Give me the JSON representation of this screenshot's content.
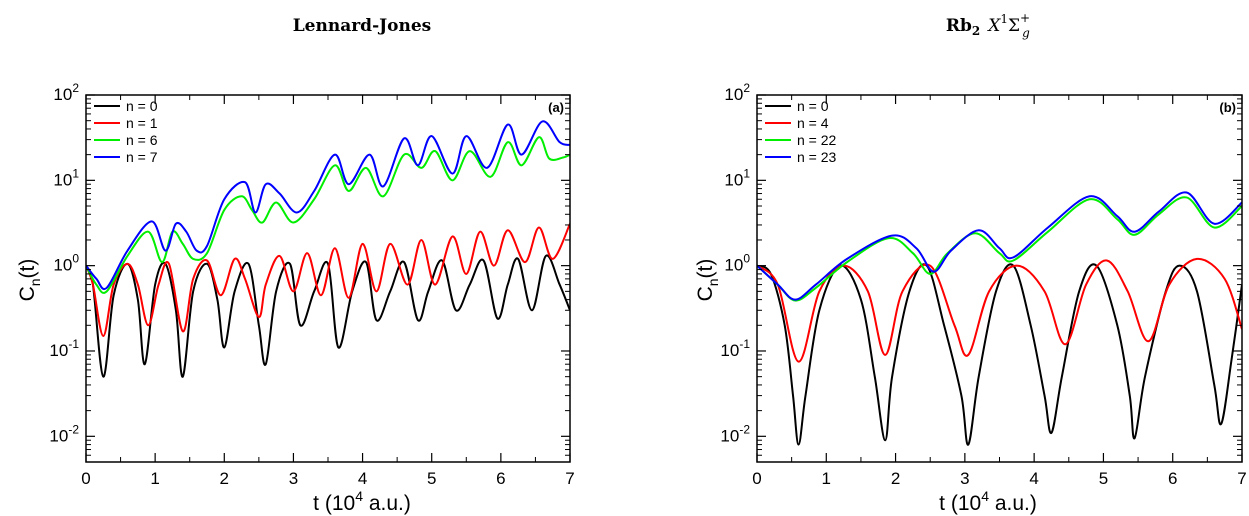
{
  "chart_data": [
    {
      "type": "line",
      "title": "Lennard-Jones",
      "panel_tag": "(a)",
      "xlabel": "t (10",
      "xlabel_sup": "4",
      "xlabel_tail": " a.u.)",
      "ylabel": "C",
      "ylabel_sub": "n",
      "ylabel_tail": "(t)",
      "xlim": [
        0,
        7
      ],
      "ylim": [
        0.005,
        100
      ],
      "y_scale": "log",
      "x_ticks": [
        "0",
        "1",
        "2",
        "3",
        "4",
        "5",
        "6",
        "7"
      ],
      "y_ticks": [
        {
          "base": "10",
          "exp": "-2"
        },
        {
          "base": "10",
          "exp": "-1"
        },
        {
          "base": "10",
          "exp": "0"
        },
        {
          "base": "10",
          "exp": "1"
        },
        {
          "base": "10",
          "exp": "2"
        }
      ],
      "legend_position": "top-left",
      "series": [
        {
          "name": "n = 0",
          "color": "#000000",
          "x": [
            0,
            0.1,
            0.25,
            0.4,
            0.6,
            0.75,
            0.85,
            1.0,
            1.15,
            1.3,
            1.4,
            1.55,
            1.75,
            1.9,
            2.0,
            2.15,
            2.35,
            2.5,
            2.6,
            2.75,
            2.95,
            3.1,
            3.3,
            3.5,
            3.65,
            3.85,
            4.05,
            4.2,
            4.4,
            4.6,
            4.8,
            4.95,
            5.15,
            5.35,
            5.55,
            5.75,
            5.95,
            6.1,
            6.25,
            6.45,
            6.65,
            6.85,
            7.0
          ],
          "values": [
            1.0,
            0.6,
            0.05,
            0.45,
            1.05,
            0.4,
            0.07,
            0.6,
            1.05,
            0.3,
            0.05,
            0.5,
            1.05,
            0.4,
            0.11,
            0.5,
            1.05,
            0.2,
            0.07,
            0.5,
            1.05,
            0.2,
            0.5,
            1.05,
            0.11,
            0.5,
            1.1,
            0.23,
            0.5,
            1.1,
            0.23,
            0.5,
            1.15,
            0.3,
            0.6,
            1.15,
            0.24,
            0.6,
            1.2,
            0.3,
            1.3,
            0.6,
            0.3
          ]
        },
        {
          "name": "n = 1",
          "color": "#ff0000",
          "x": [
            0,
            0.1,
            0.25,
            0.4,
            0.6,
            0.75,
            0.9,
            1.05,
            1.2,
            1.4,
            1.55,
            1.75,
            1.95,
            2.15,
            2.3,
            2.5,
            2.6,
            2.8,
            3.0,
            3.2,
            3.4,
            3.6,
            3.8,
            4.0,
            4.2,
            4.4,
            4.65,
            4.85,
            5.05,
            5.3,
            5.5,
            5.7,
            5.9,
            6.1,
            6.35,
            6.55,
            6.75,
            7.0
          ],
          "values": [
            1.0,
            0.6,
            0.15,
            0.6,
            1.05,
            0.6,
            0.2,
            0.6,
            1.05,
            0.17,
            0.7,
            1.15,
            0.45,
            1.2,
            0.7,
            0.25,
            0.6,
            1.3,
            0.5,
            1.4,
            0.45,
            1.6,
            0.42,
            1.8,
            0.5,
            1.8,
            0.6,
            2.0,
            0.6,
            2.2,
            0.8,
            2.5,
            1.0,
            2.6,
            1.1,
            2.8,
            1.2,
            3.1
          ]
        },
        {
          "name": "n = 6",
          "color": "#00ee00",
          "x": [
            0,
            0.15,
            0.3,
            0.6,
            0.9,
            1.1,
            1.25,
            1.4,
            1.55,
            1.75,
            2.0,
            2.25,
            2.4,
            2.55,
            2.75,
            3.0,
            3.3,
            3.6,
            3.8,
            4.05,
            4.3,
            4.6,
            4.85,
            5.05,
            5.3,
            5.55,
            5.85,
            6.1,
            6.3,
            6.55,
            6.7,
            6.9,
            7.0
          ],
          "values": [
            1.0,
            0.6,
            0.5,
            1.3,
            2.5,
            1.1,
            2.5,
            1.8,
            1.2,
            1.4,
            4.5,
            6.5,
            4.5,
            3.2,
            5.5,
            3.2,
            6.0,
            15.0,
            7.5,
            14.0,
            6.5,
            20.0,
            14.0,
            22.0,
            10.0,
            22.0,
            11.0,
            28.0,
            15.0,
            32.0,
            18.0,
            18.5,
            20.0
          ]
        },
        {
          "name": "n = 7",
          "color": "#0000ff",
          "x": [
            0,
            0.15,
            0.3,
            0.6,
            0.95,
            1.15,
            1.3,
            1.45,
            1.6,
            1.75,
            2.0,
            2.3,
            2.45,
            2.6,
            2.8,
            3.05,
            3.3,
            3.6,
            3.8,
            4.1,
            4.3,
            4.6,
            4.8,
            5.0,
            5.3,
            5.5,
            5.8,
            6.1,
            6.3,
            6.6,
            6.85,
            7.0
          ],
          "values": [
            1.0,
            0.7,
            0.55,
            1.5,
            3.3,
            1.5,
            3.1,
            2.5,
            1.5,
            1.7,
            6.0,
            9.5,
            4.2,
            9.0,
            7.0,
            4.2,
            7.5,
            20.0,
            9.0,
            20.0,
            8.5,
            31.0,
            15.0,
            33.0,
            12.0,
            33.0,
            14.0,
            45.0,
            20.0,
            49.0,
            28.0,
            26.0
          ]
        }
      ]
    },
    {
      "type": "line",
      "title": "Rb",
      "title_sub": "2",
      "title_state": "X",
      "title_state_sup": "1",
      "title_sigma": "Σ",
      "title_sigma_sup": "+",
      "title_sigma_sub": "g",
      "panel_tag": "(b)",
      "xlabel": "t (10",
      "xlabel_sup": "4",
      "xlabel_tail": " a.u.)",
      "ylabel": "C",
      "ylabel_sub": "n",
      "ylabel_tail": "(t)",
      "xlim": [
        0,
        7
      ],
      "ylim": [
        0.005,
        100
      ],
      "y_scale": "log",
      "x_ticks": [
        "0",
        "1",
        "2",
        "3",
        "4",
        "5",
        "6",
        "7"
      ],
      "y_ticks": [
        {
          "base": "10",
          "exp": "-2"
        },
        {
          "base": "10",
          "exp": "-1"
        },
        {
          "base": "10",
          "exp": "0"
        },
        {
          "base": "10",
          "exp": "1"
        },
        {
          "base": "10",
          "exp": "2"
        }
      ],
      "legend_position": "top-left",
      "series": [
        {
          "name": "n = 0",
          "color": "#000000",
          "x": [
            0,
            0.2,
            0.4,
            0.52,
            0.6,
            0.7,
            0.9,
            1.2,
            1.5,
            1.7,
            1.85,
            1.95,
            2.2,
            2.45,
            2.7,
            2.95,
            3.05,
            3.2,
            3.45,
            3.7,
            3.95,
            4.15,
            4.25,
            4.4,
            4.65,
            4.9,
            5.2,
            5.38,
            5.45,
            5.6,
            5.9,
            6.1,
            6.35,
            6.6,
            6.7,
            6.85,
            7.0
          ],
          "values": [
            1.0,
            0.8,
            0.2,
            0.03,
            0.008,
            0.03,
            0.3,
            1.0,
            0.4,
            0.05,
            0.009,
            0.05,
            0.5,
            1.0,
            0.2,
            0.03,
            0.008,
            0.05,
            0.5,
            1.0,
            0.2,
            0.03,
            0.011,
            0.05,
            0.5,
            1.0,
            0.2,
            0.03,
            0.0095,
            0.05,
            0.5,
            1.0,
            0.5,
            0.04,
            0.014,
            0.08,
            0.6
          ]
        },
        {
          "name": "n = 4",
          "color": "#ff0000",
          "x": [
            0,
            0.3,
            0.6,
            0.9,
            1.25,
            1.6,
            1.85,
            2.1,
            2.5,
            2.85,
            3.05,
            3.35,
            3.75,
            4.15,
            4.45,
            4.75,
            5.05,
            5.35,
            5.65,
            5.95,
            6.35,
            6.75,
            7.0
          ],
          "values": [
            1.0,
            0.6,
            0.075,
            0.5,
            1.0,
            0.5,
            0.09,
            0.5,
            1.0,
            0.2,
            0.09,
            0.5,
            1.0,
            0.5,
            0.12,
            0.6,
            1.15,
            0.5,
            0.13,
            0.6,
            1.2,
            0.7,
            0.18
          ]
        },
        {
          "name": "n = 22",
          "color": "#00ee00",
          "x": [
            0,
            0.3,
            0.55,
            0.85,
            1.3,
            1.9,
            2.25,
            2.5,
            2.75,
            3.15,
            3.5,
            3.7,
            4.2,
            4.8,
            5.2,
            5.45,
            5.8,
            6.2,
            6.6,
            7.0
          ],
          "values": [
            1.0,
            0.6,
            0.39,
            0.55,
            1.1,
            2.1,
            1.4,
            0.8,
            1.4,
            2.4,
            1.4,
            1.15,
            2.5,
            6.0,
            3.5,
            2.3,
            4.0,
            6.3,
            2.8,
            5.0
          ]
        },
        {
          "name": "n = 23",
          "color": "#0000ff",
          "x": [
            0,
            0.3,
            0.55,
            0.85,
            1.3,
            1.95,
            2.3,
            2.55,
            2.8,
            3.2,
            3.5,
            3.7,
            4.2,
            4.8,
            5.2,
            5.45,
            5.8,
            6.2,
            6.6,
            7.0
          ],
          "values": [
            1.0,
            0.6,
            0.4,
            0.6,
            1.2,
            2.25,
            1.6,
            0.85,
            1.5,
            2.6,
            1.6,
            1.25,
            2.8,
            6.5,
            3.8,
            2.5,
            4.3,
            7.2,
            3.1,
            5.5
          ]
        }
      ]
    }
  ]
}
